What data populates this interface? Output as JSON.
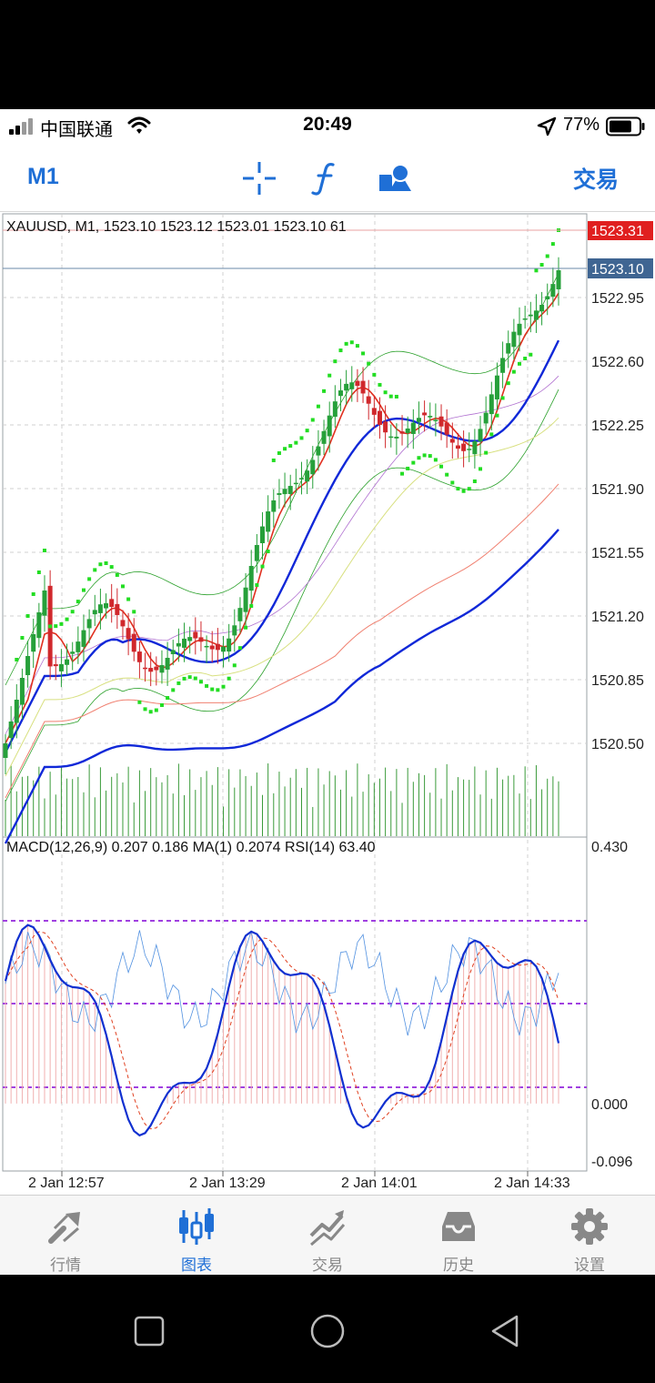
{
  "status_bar": {
    "carrier": "中国联通",
    "time": "20:49",
    "battery": "77%",
    "battery_level": 0.77
  },
  "toolbar": {
    "timeframe": "M1",
    "trade_label": "交易",
    "icons": [
      "crosshair-icon",
      "function-icon",
      "objects-icon"
    ]
  },
  "chart": {
    "header": "XAUUSD, M1, 1523.10 1523.12 1523.01 1523.10 61",
    "ask_price": "1523.31",
    "bid_price": "1523.10",
    "price_ticks": [
      "1522.95",
      "1522.60",
      "1522.25",
      "1521.90",
      "1521.55",
      "1521.20",
      "1520.85",
      "1520.50"
    ],
    "indicator_header": "MACD(12,26,9) 0.207 0.186 MA(1) 0.2074 RSI(14) 63.40",
    "indicator_ticks": [
      "0.430",
      "0.000",
      "-0.096"
    ],
    "time_ticks": [
      "2 Jan 12:57",
      "2 Jan 13:29",
      "2 Jan 14:01",
      "2 Jan 14:33"
    ],
    "colors": {
      "bull": "#26a03a",
      "bear": "#d0282c",
      "ask_tag": "#e02020",
      "bid_tag": "#3f6592",
      "macd_line": "#1030d0",
      "macd_signal": "#e04020",
      "rsi_line": "#5090e0",
      "levels": "#a040e0",
      "sar": "#22dd22",
      "ma_fast": "#e03020",
      "ma_mid": "#1028d8",
      "volume": "#3a9a3a"
    }
  },
  "tabbar": {
    "items": [
      {
        "label": "行情",
        "icon": "quotes-icon",
        "active": false
      },
      {
        "label": "图表",
        "icon": "chart-icon",
        "active": true
      },
      {
        "label": "交易",
        "icon": "trade-icon",
        "active": false
      },
      {
        "label": "历史",
        "icon": "history-icon",
        "active": false
      },
      {
        "label": "设置",
        "icon": "settings-icon",
        "active": false
      }
    ]
  }
}
